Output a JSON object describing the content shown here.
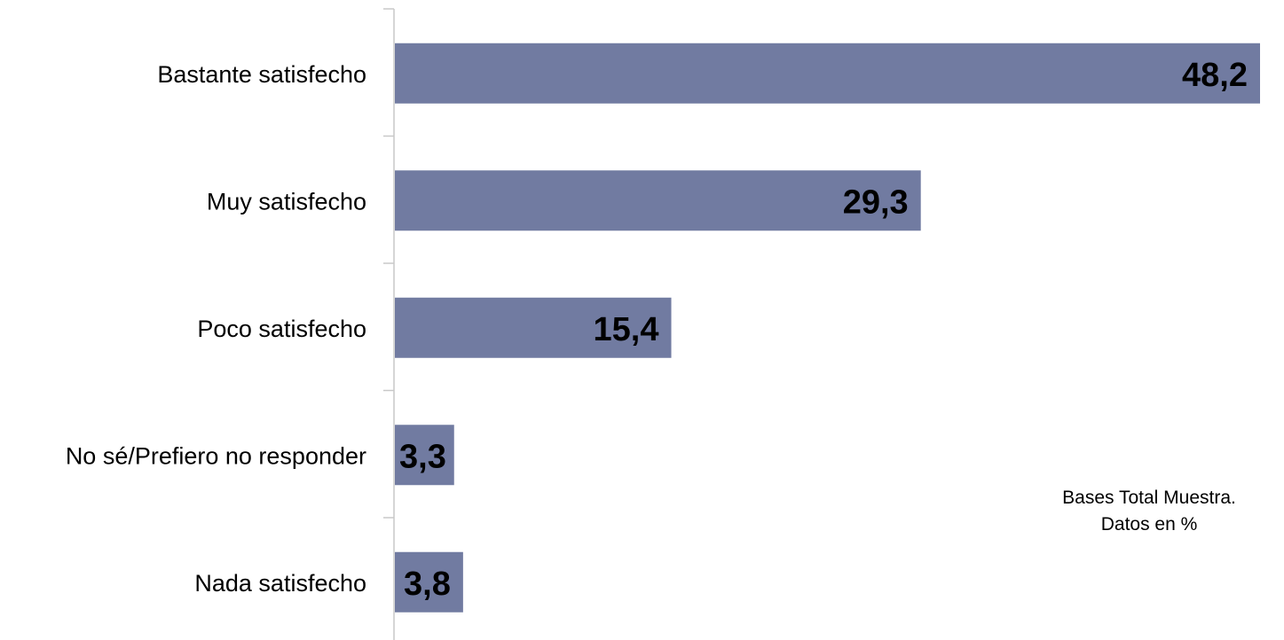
{
  "chart_data": {
    "type": "bar",
    "orientation": "horizontal",
    "categories": [
      "Bastante satisfecho",
      "Muy satisfecho",
      "Poco satisfecho",
      "No sé/Prefiero no responder",
      "Nada satisfecho"
    ],
    "values": [
      48.2,
      29.3,
      15.4,
      3.3,
      3.8
    ],
    "value_labels": [
      "48,2",
      "29,3",
      "15,4",
      "3,3",
      "3,8"
    ],
    "xlim": [
      0,
      48.2
    ],
    "grid": false,
    "legend": "none",
    "bar_color": "#717ba1"
  },
  "note": {
    "line1": "Bases Total Muestra.",
    "line2": "Datos en %"
  }
}
